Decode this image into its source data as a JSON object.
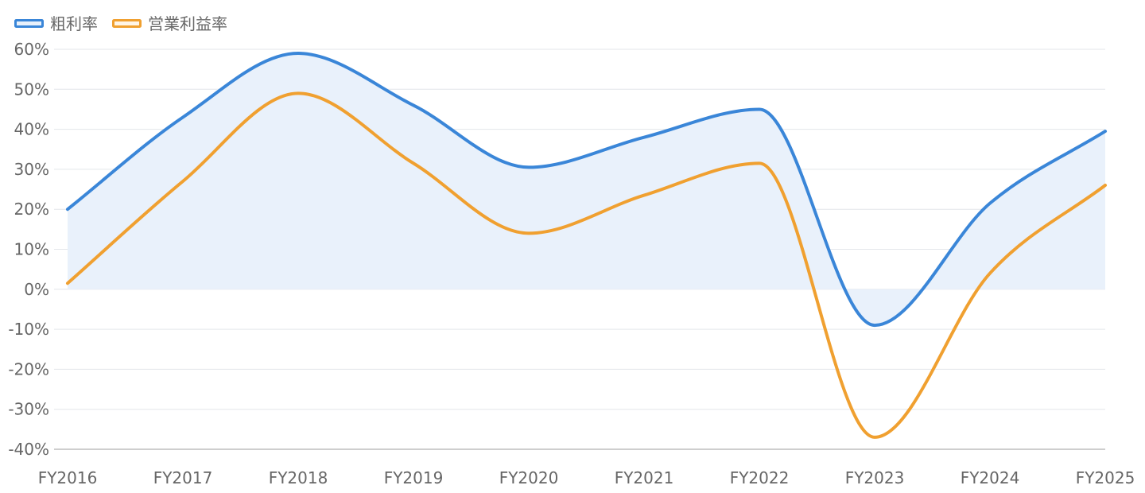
{
  "chart_data": {
    "type": "line",
    "categories": [
      "FY2016",
      "FY2017",
      "FY2018",
      "FY2019",
      "FY2020",
      "FY2021",
      "FY2022",
      "FY2023",
      "FY2024",
      "FY2025"
    ],
    "series": [
      {
        "name": "粗利率",
        "color": "#3a86d8",
        "fill": "#e9f1fb",
        "values": [
          20,
          43,
          59,
          46,
          30.5,
          38,
          45,
          -9,
          21.5,
          39.5
        ]
      },
      {
        "name": "営業利益率",
        "color": "#f0a030",
        "values": [
          1.5,
          27,
          49,
          31.5,
          14,
          23.5,
          31.5,
          -37,
          4,
          26
        ]
      }
    ],
    "yticks": [
      "60%",
      "50%",
      "40%",
      "30%",
      "20%",
      "10%",
      "0%",
      "-10%",
      "-20%",
      "-30%",
      "-40%"
    ],
    "ylim": [
      -40,
      60
    ],
    "grid": true,
    "legend_position": "top-left",
    "title": "",
    "xlabel": "",
    "ylabel": ""
  }
}
